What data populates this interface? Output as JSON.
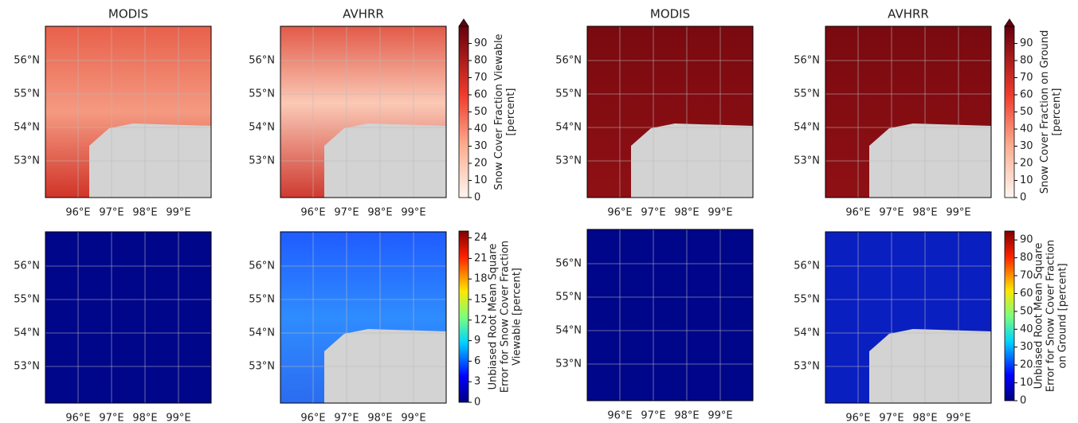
{
  "panels": [
    {
      "title": "MODIS"
    },
    {
      "title": "AVHRR"
    },
    {
      "title": "MODIS"
    },
    {
      "title": "AVHRR"
    }
  ],
  "lat_ticks": [
    {
      "value": 56,
      "label": "56°N"
    },
    {
      "value": 55,
      "label": "55°N"
    },
    {
      "value": 54,
      "label": "54°N"
    },
    {
      "value": 53,
      "label": "53°N"
    }
  ],
  "lon_ticks": [
    {
      "value": 96,
      "label": "96°E"
    },
    {
      "value": 97,
      "label": "97°E"
    },
    {
      "value": 98,
      "label": "98°E"
    },
    {
      "value": 99,
      "label": "99°E"
    }
  ],
  "colorbars": [
    {
      "label": [
        "Snow Cover Fraction Viewable",
        "[percent]"
      ],
      "range": [
        0,
        100
      ],
      "ticks": [
        0,
        10,
        20,
        30,
        40,
        50,
        60,
        70,
        80,
        90
      ],
      "colormap": "reds"
    },
    {
      "label": [
        "Snow Cover Fraction on Ground",
        "[percent]"
      ],
      "range": [
        0,
        100
      ],
      "ticks": [
        0,
        10,
        20,
        30,
        40,
        50,
        60,
        70,
        80,
        90
      ],
      "colormap": "reds"
    },
    {
      "label": [
        "Unbiased Root Mean Square",
        "Error for Snow Cover Fraction",
        "Viewable [percent]"
      ],
      "range": [
        0,
        25
      ],
      "ticks": [
        0,
        3,
        6,
        9,
        12,
        15,
        18,
        21,
        24
      ],
      "colormap": "jet"
    },
    {
      "label": [
        "Unbiased Root Mean Square",
        "Error for Snow Cover Fraction",
        "on Ground [percent]"
      ],
      "range": [
        0,
        95
      ],
      "ticks": [
        0,
        10,
        20,
        30,
        40,
        50,
        60,
        70,
        80,
        90
      ],
      "colormap": "jet"
    }
  ]
}
